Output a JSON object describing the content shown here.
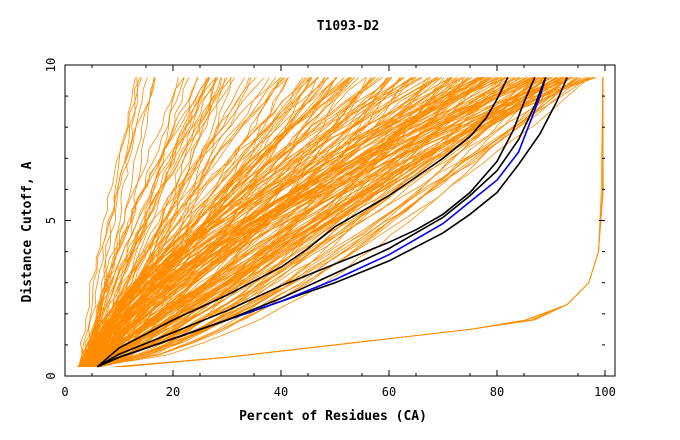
{
  "chart_data": {
    "type": "line",
    "title": "T1093-D2",
    "xlabel": "Percent of Residues (CA)",
    "ylabel": "Distance Cutoff, A",
    "xlim": [
      0,
      100
    ],
    "ylim": [
      0,
      10
    ],
    "xticks": [
      "0",
      "20",
      "40",
      "60",
      "80",
      "100"
    ],
    "yticks": [
      "0",
      "5",
      "10"
    ],
    "grid": false,
    "legend": "none",
    "colors": {
      "models": "#ff8c00",
      "reference_black": "#000000",
      "reference_blue": "#0000ff",
      "frame": "#000000"
    },
    "series": [
      {
        "color": "#000000",
        "x": [
          6,
          10,
          20,
          30,
          40,
          45,
          50,
          55,
          60,
          65,
          70,
          75,
          78,
          80,
          82
        ],
        "y": [
          0.3,
          0.9,
          1.8,
          2.6,
          3.5,
          4.1,
          4.8,
          5.3,
          5.8,
          6.4,
          7.0,
          7.7,
          8.3,
          8.9,
          9.6
        ]
      },
      {
        "color": "#000000",
        "x": [
          6,
          10,
          20,
          30,
          40,
          50,
          60,
          65,
          70,
          75,
          80,
          83,
          85,
          87
        ],
        "y": [
          0.3,
          0.7,
          1.4,
          2.1,
          2.9,
          3.6,
          4.3,
          4.7,
          5.2,
          5.9,
          6.9,
          7.9,
          8.8,
          9.6
        ]
      },
      {
        "color": "#000000",
        "x": [
          6,
          10,
          20,
          30,
          40,
          50,
          60,
          70,
          75,
          80,
          84,
          88,
          91,
          93
        ],
        "y": [
          0.3,
          0.6,
          1.2,
          1.8,
          2.4,
          3.0,
          3.7,
          4.6,
          5.2,
          5.9,
          6.8,
          7.8,
          8.8,
          9.6
        ]
      },
      {
        "color": "#0000ff",
        "x": [
          6,
          10,
          20,
          30,
          40,
          50,
          60,
          70,
          75,
          80,
          84,
          86,
          88,
          89
        ],
        "y": [
          0.3,
          0.6,
          1.2,
          1.8,
          2.4,
          3.1,
          3.9,
          4.9,
          5.6,
          6.3,
          7.2,
          8.1,
          9.0,
          9.6
        ]
      },
      {
        "color": "#000000",
        "x": [
          6,
          10,
          20,
          30,
          40,
          50,
          60,
          70,
          75,
          80,
          84,
          87,
          89
        ],
        "y": [
          0.3,
          0.6,
          1.2,
          1.8,
          2.5,
          3.3,
          4.1,
          5.1,
          5.8,
          6.6,
          7.6,
          8.7,
          9.6
        ]
      }
    ]
  }
}
